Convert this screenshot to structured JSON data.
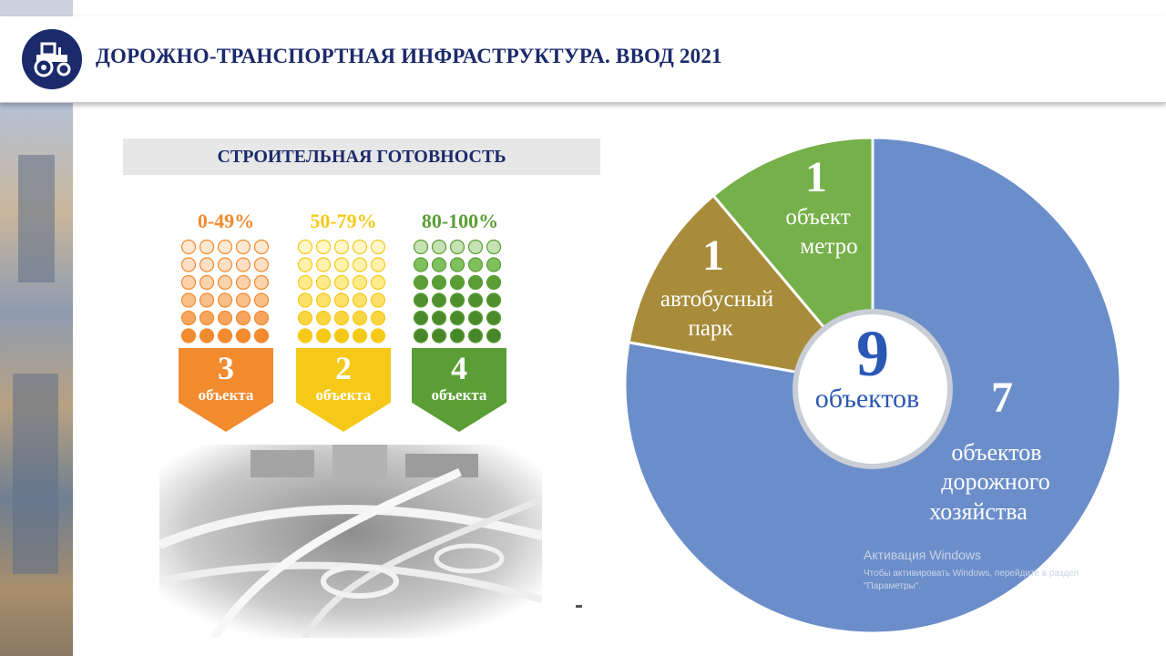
{
  "header": {
    "title": "ДОРОЖНО-ТРАНСПОРТНАЯ ИНФРАСТРУКТУРА. ВВОД 2021",
    "logo_icon": "tractor-icon"
  },
  "readiness": {
    "title": "СТРОИТЕЛЬНАЯ ГОТОВНОСТЬ",
    "groups": [
      {
        "range": "0-49%",
        "count": "3",
        "unit": "объекта",
        "color": "#f28a2e"
      },
      {
        "range": "50-79%",
        "count": "2",
        "unit": "объекта",
        "color": "#f6c919"
      },
      {
        "range": "80-100%",
        "count": "4",
        "unit": "объекта",
        "color": "#5a9e35"
      }
    ]
  },
  "chart_data": {
    "type": "pie",
    "title": "",
    "center": {
      "value": "9",
      "label": "объектов"
    },
    "slices": [
      {
        "value": 7,
        "number": "7",
        "lines": [
          "объектов",
          "дорожного",
          "хозяйства"
        ],
        "color": "#6b8ecb"
      },
      {
        "value": 1,
        "number": "1",
        "lines": [
          "автобусный",
          "парк"
        ],
        "color": "#a88c3a"
      },
      {
        "value": 1,
        "number": "1",
        "lines": [
          "объект",
          "метро"
        ],
        "color": "#76b04a"
      }
    ]
  },
  "watermark": {
    "title": "Активация Windows",
    "text": "Чтобы активировать Windows, перейдите в раздел \"Параметры\"."
  }
}
